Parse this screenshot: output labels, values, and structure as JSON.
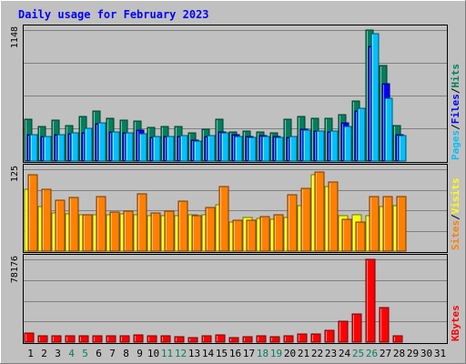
{
  "chart_data": {
    "type": "bar",
    "title": "Daily usage for February 2023",
    "colors": {
      "hits": "#00805c",
      "files": "#0000ff",
      "pages": "#00c0ff",
      "visits": "#ffff00",
      "sites": "#ff8000",
      "kbytes": "#ff0000",
      "weekend_day": "#00805c",
      "weekday": "#000000"
    },
    "x_labels": [
      "1",
      "2",
      "3",
      "4",
      "5",
      "6",
      "7",
      "8",
      "9",
      "10",
      "11",
      "12",
      "13",
      "14",
      "15",
      "16",
      "17",
      "18",
      "19",
      "20",
      "21",
      "22",
      "23",
      "24",
      "25",
      "26",
      "27",
      "28",
      "29",
      "30",
      "31"
    ],
    "weekend_days": [
      4,
      5,
      11,
      12,
      18,
      19,
      25,
      26
    ],
    "panels": [
      {
        "id": "hits-files-pages",
        "ymax_label": "1148",
        "ymax": 1148,
        "legend": [
          {
            "key": "pages",
            "text": "Pages"
          },
          {
            "key": "sep",
            "text": "/"
          },
          {
            "key": "files",
            "text": "Files"
          },
          {
            "key": "sep",
            "text": "/"
          },
          {
            "key": "hits",
            "text": "Hits"
          }
        ],
        "series": [
          {
            "name": "Hits",
            "color_key": "hits",
            "values": [
              368,
              306,
              361,
              310,
              389,
              441,
              375,
              360,
              347,
              296,
              304,
              306,
              247,
              277,
              368,
              258,
              263,
              256,
              246,
              363,
              390,
              372,
              377,
              407,
              524,
              1148,
              840,
              311,
              0,
              0,
              0
            ]
          },
          {
            "name": "Files",
            "color_key": "files",
            "values": [
              233,
              215,
              232,
              242,
              244,
              324,
              259,
              247,
              272,
              210,
              212,
              213,
              181,
              213,
              252,
              228,
              213,
              223,
              213,
              210,
              276,
              265,
              259,
              337,
              438,
              1003,
              675,
              230,
              0,
              0,
              0
            ]
          },
          {
            "name": "Pages",
            "color_key": "pages",
            "values": [
              235,
              217,
              235,
              247,
              289,
              338,
              257,
              247,
              238,
              212,
              212,
              222,
              179,
              223,
              246,
              219,
              211,
              219,
              211,
              214,
              268,
              262,
              262,
              302,
              466,
              1117,
              547,
              226,
              0,
              0,
              0
            ]
          }
        ]
      },
      {
        "id": "visits-sites",
        "ymax_label": "125",
        "ymax": 125,
        "legend": [
          {
            "key": "sites",
            "text": "Sites"
          },
          {
            "key": "sep",
            "text": "/"
          },
          {
            "key": "visits",
            "text": "Visits"
          }
        ],
        "series": [
          {
            "name": "Visits",
            "color_key": "visits",
            "values": [
              94,
              68,
              59,
              57,
              56,
              56,
              56,
              57,
              56,
              54,
              54,
              54,
              56,
              56,
              71,
              44,
              51,
              50,
              49,
              51,
              69,
              116,
              99,
              54,
              55,
              54,
              68,
              69,
              0,
              0,
              0
            ]
          },
          {
            "name": "Sites",
            "color_key": "sites",
            "values": [
              117,
              94,
              78,
              82,
              56,
              84,
              60,
              61,
              87,
              58,
              61,
              76,
              54,
              66,
              99,
              47,
              47,
              53,
              55,
              86,
              96,
              121,
              106,
              48,
              45,
              83,
              84,
              84,
              0,
              0,
              0
            ]
          }
        ]
      },
      {
        "id": "kbytes",
        "ymax_label": "78176",
        "ymax": 78176,
        "legend": [
          {
            "key": "kbytes",
            "text": "KBytes"
          }
        ],
        "series": [
          {
            "name": "KBytes",
            "color_key": "kbytes",
            "values": [
              8900,
              5600,
              5600,
              5900,
              6400,
              5700,
              5800,
              5600,
              6600,
              5900,
              5600,
              5500,
              4500,
              5700,
              6800,
              4500,
              5300,
              5600,
              5300,
              5700,
              7700,
              7500,
              10900,
              19700,
              27000,
              78176,
              33000,
              5800,
              0,
              0,
              0
            ]
          }
        ]
      }
    ]
  }
}
